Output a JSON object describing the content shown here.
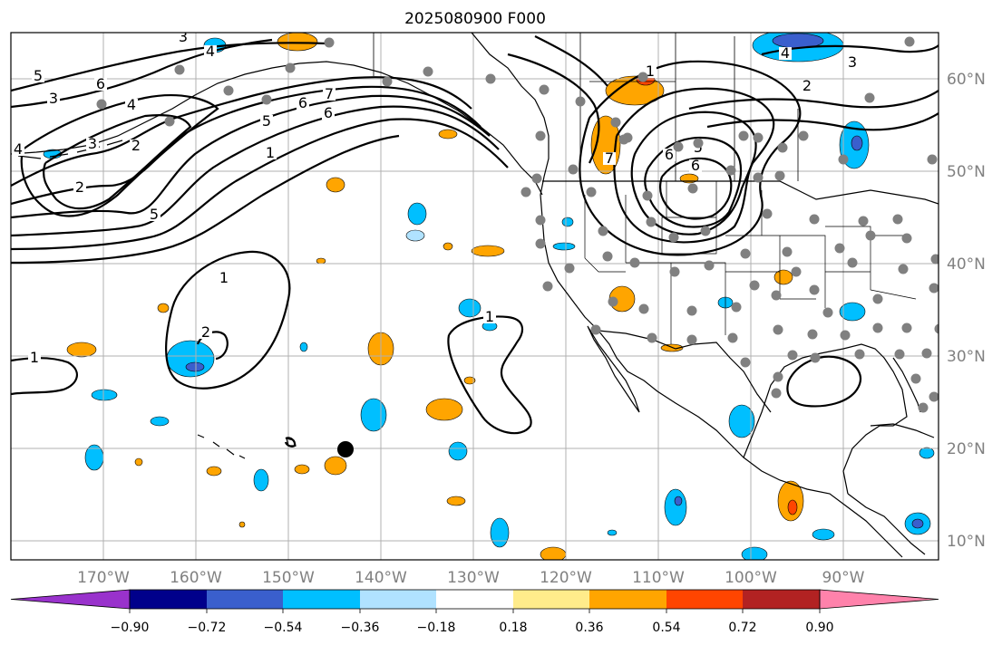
{
  "title": "2025080900 F000",
  "longitude_labels": [
    "170°W",
    "160°W",
    "150°W",
    "140°W",
    "130°W",
    "120°W",
    "110°W",
    "100°W",
    "90°W"
  ],
  "latitude_labels": [
    "60°N",
    "50°N",
    "40°N",
    "30°N",
    "20°N",
    "10°N"
  ],
  "colorbar": {
    "tick_labels": [
      "−0.90",
      "−0.72",
      "−0.54",
      "−0.36",
      "−0.18",
      "0.18",
      "0.36",
      "0.54",
      "0.72",
      "0.90"
    ],
    "colors": [
      "#9932cc",
      "#00008b",
      "#3a5fcd",
      "#00bfff",
      "#b0e2ff",
      "#ffffff",
      "#ffec8b",
      "#ffa500",
      "#ff4500",
      "#b22222",
      "#ff82ab"
    ]
  },
  "contour_labels": [
    "5",
    "6",
    "3",
    "4",
    "3",
    "4",
    "6",
    "5",
    "6",
    "7",
    "1",
    "4",
    "2",
    "3",
    "5",
    "2",
    "1",
    "2",
    "1",
    "1",
    "7",
    "1",
    "6",
    "5",
    "6",
    "4",
    "3",
    "2"
  ],
  "colors": {
    "axis_label": "#808080",
    "grid": "#b0b0b0",
    "coastline": "#000000",
    "station_dot": "#808080",
    "marker": "#000000"
  }
}
